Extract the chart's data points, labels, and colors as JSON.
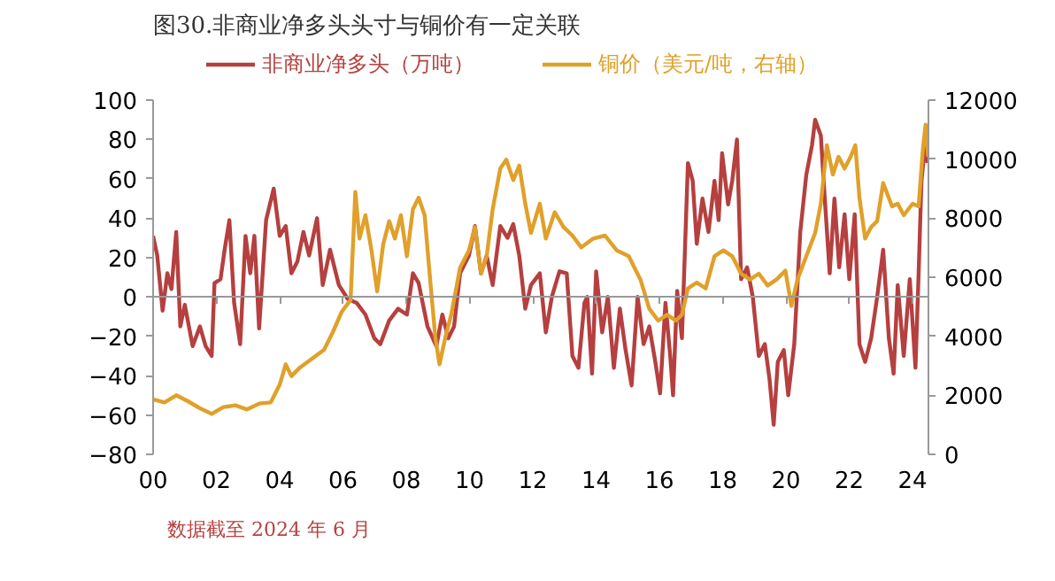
{
  "chart_data": {
    "type": "line",
    "title": "图30.非商业净多头头寸与铜价有一定关联",
    "annotations": [
      "数据截至 2024 年 6 月"
    ],
    "xlim": [
      2000,
      2024.5
    ],
    "xticks": [
      {
        "value": 2000,
        "label": "00"
      },
      {
        "value": 2002,
        "label": "02"
      },
      {
        "value": 2004,
        "label": "04"
      },
      {
        "value": 2006,
        "label": "06"
      },
      {
        "value": 2008,
        "label": "08"
      },
      {
        "value": 2010,
        "label": "10"
      },
      {
        "value": 2012,
        "label": "12"
      },
      {
        "value": 2014,
        "label": "14"
      },
      {
        "value": 2016,
        "label": "16"
      },
      {
        "value": 2018,
        "label": "18"
      },
      {
        "value": 2020,
        "label": "20"
      },
      {
        "value": 2022,
        "label": "22"
      },
      {
        "value": 2024,
        "label": "24"
      }
    ],
    "ylim": [
      -80,
      100
    ],
    "yticks": [
      -80,
      -60,
      -40,
      -20,
      0,
      20,
      40,
      60,
      80,
      100
    ],
    "y2lim": [
      0,
      12000
    ],
    "y2ticks": [
      0,
      2000,
      4000,
      6000,
      8000,
      10000,
      12000
    ],
    "legend": "top",
    "series": [
      {
        "name": "非商业净多头（万吨）",
        "color": "#b5403f",
        "x": [
          2000.0,
          2000.13,
          2000.3,
          2000.45,
          2000.58,
          2000.73,
          2000.86,
          2001.0,
          2001.25,
          2001.48,
          2001.66,
          2001.85,
          2001.94,
          2002.13,
          2002.26,
          2002.41,
          2002.56,
          2002.75,
          2002.92,
          2003.07,
          2003.2,
          2003.35,
          2003.57,
          2003.81,
          2004.0,
          2004.19,
          2004.37,
          2004.56,
          2004.75,
          2004.93,
          2005.18,
          2005.36,
          2005.59,
          2005.87,
          2006.15,
          2006.43,
          2006.71,
          2006.99,
          2007.18,
          2007.46,
          2007.74,
          2008.02,
          2008.21,
          2008.39,
          2008.67,
          2008.95,
          2009.14,
          2009.33,
          2009.51,
          2009.7,
          2009.98,
          2010.17,
          2010.36,
          2010.54,
          2010.73,
          2010.97,
          2011.2,
          2011.38,
          2011.57,
          2011.76,
          2011.94,
          2012.22,
          2012.41,
          2012.6,
          2012.84,
          2013.07,
          2013.25,
          2013.44,
          2013.63,
          2013.72,
          2013.87,
          2014.0,
          2014.19,
          2014.37,
          2014.56,
          2014.75,
          2014.93,
          2015.12,
          2015.31,
          2015.5,
          2015.68,
          2015.87,
          2016.02,
          2016.19,
          2016.34,
          2016.43,
          2016.56,
          2016.71,
          2016.9,
          2017.05,
          2017.18,
          2017.36,
          2017.55,
          2017.74,
          2017.87,
          2017.98,
          2018.17,
          2018.3,
          2018.45,
          2018.58,
          2018.77,
          2018.95,
          2019.14,
          2019.33,
          2019.48,
          2019.61,
          2019.74,
          2019.93,
          2020.07,
          2020.26,
          2020.45,
          2020.64,
          2020.82,
          2020.92,
          2021.1,
          2021.2,
          2021.38,
          2021.53,
          2021.68,
          2021.85,
          2022.0,
          2022.17,
          2022.32,
          2022.5,
          2022.69,
          2022.88,
          2023.07,
          2023.25,
          2023.4,
          2023.53,
          2023.72,
          2023.91,
          2024.09,
          2024.19,
          2024.28,
          2024.41,
          2024.47
        ],
        "values": [
          31,
          21,
          -7,
          12,
          4,
          33,
          -15,
          -4,
          -25,
          -15,
          -25,
          -30,
          7,
          9,
          24,
          39,
          -3,
          -24,
          31,
          12,
          31,
          -16,
          39,
          55,
          31,
          36,
          12,
          18,
          33,
          21,
          40,
          6,
          24,
          6,
          -1,
          -3,
          -9,
          -21,
          -24,
          -12,
          -6,
          -9,
          12,
          7,
          -15,
          -25,
          -9,
          -21,
          -15,
          12,
          21,
          36,
          12,
          21,
          6,
          36,
          30,
          37,
          21,
          -6,
          6,
          12,
          -18,
          0,
          13,
          12,
          -30,
          -36,
          -3,
          0,
          -39,
          13,
          -18,
          0,
          -36,
          -6,
          -27,
          -45,
          0,
          -24,
          -15,
          -33,
          -49,
          -3,
          -30,
          -50,
          3,
          -21,
          68,
          59,
          27,
          50,
          33,
          59,
          39,
          73,
          47,
          59,
          80,
          9,
          15,
          0,
          -30,
          -24,
          -42,
          -65,
          -33,
          -27,
          -50,
          -24,
          33,
          62,
          77,
          90,
          82,
          56,
          12,
          50,
          15,
          42,
          9,
          42,
          -24,
          -33,
          -21,
          0,
          24,
          -21,
          -39,
          6,
          -30,
          9,
          -36,
          12,
          59,
          80,
          68
        ]
      },
      {
        "name": "铜价（美元/吨，右轴）",
        "color": "#e0a02a",
        "axis": "y2",
        "x": [
          2000.0,
          2000.36,
          2000.73,
          2001.1,
          2001.48,
          2001.85,
          2002.22,
          2002.6,
          2002.97,
          2003.35,
          2003.72,
          2004.0,
          2004.19,
          2004.37,
          2004.65,
          2005.03,
          2005.4,
          2005.68,
          2005.96,
          2006.24,
          2006.39,
          2006.52,
          2006.71,
          2006.9,
          2007.08,
          2007.27,
          2007.46,
          2007.64,
          2007.83,
          2008.02,
          2008.21,
          2008.39,
          2008.58,
          2008.77,
          2008.92,
          2009.05,
          2009.23,
          2009.42,
          2009.7,
          2009.98,
          2010.17,
          2010.36,
          2010.54,
          2010.73,
          2010.97,
          2011.16,
          2011.38,
          2011.57,
          2011.76,
          2011.94,
          2012.22,
          2012.41,
          2012.69,
          2012.97,
          2013.25,
          2013.53,
          2013.91,
          2014.28,
          2014.65,
          2015.03,
          2015.21,
          2015.4,
          2015.68,
          2015.96,
          2016.24,
          2016.52,
          2016.71,
          2016.9,
          2017.18,
          2017.46,
          2017.74,
          2018.02,
          2018.3,
          2018.58,
          2018.86,
          2019.14,
          2019.42,
          2019.7,
          2019.98,
          2020.17,
          2020.36,
          2020.64,
          2020.92,
          2021.1,
          2021.29,
          2021.48,
          2021.66,
          2021.85,
          2022.04,
          2022.19,
          2022.32,
          2022.5,
          2022.69,
          2022.88,
          2023.07,
          2023.35,
          2023.53,
          2023.72,
          2024.0,
          2024.19,
          2024.32,
          2024.41,
          2024.49
        ],
        "values": [
          1860,
          1760,
          2000,
          1800,
          1560,
          1370,
          1600,
          1660,
          1520,
          1720,
          1760,
          2360,
          3050,
          2650,
          2950,
          3250,
          3540,
          4140,
          4830,
          5230,
          8890,
          7310,
          8100,
          6910,
          5520,
          7110,
          7900,
          7310,
          8100,
          6710,
          8300,
          8690,
          8100,
          5720,
          3940,
          3050,
          3940,
          4730,
          6320,
          6910,
          7700,
          6120,
          6710,
          8300,
          9680,
          9980,
          9290,
          9780,
          8490,
          7500,
          8490,
          7310,
          8200,
          7700,
          7410,
          7010,
          7310,
          7410,
          6910,
          6710,
          6320,
          5920,
          4930,
          4530,
          4730,
          4530,
          4730,
          5620,
          5820,
          5620,
          6710,
          6910,
          6710,
          6120,
          5920,
          6120,
          5720,
          5920,
          6220,
          5030,
          5920,
          6710,
          7500,
          8490,
          10470,
          9480,
          10080,
          9680,
          10080,
          10470,
          8690,
          7310,
          7700,
          7900,
          9190,
          8400,
          8490,
          8100,
          8490,
          8400,
          10280,
          11170,
          10080
        ]
      }
    ]
  }
}
